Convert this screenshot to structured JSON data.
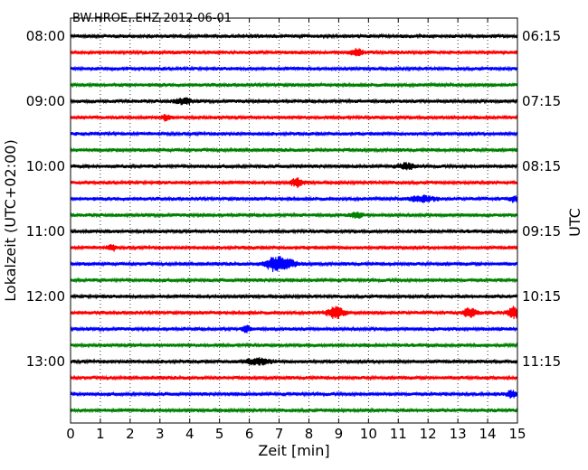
{
  "chart_data": {
    "type": "line",
    "title": "BW.HROE..EHZ 2012-06-01",
    "xlabel": "Zeit  [min]",
    "ylabel_left": "Lokalzeit (UTC+02:00)",
    "ylabel_right": "UTC",
    "xlim": [
      0,
      15
    ],
    "x_ticks": [
      "0",
      "1",
      "2",
      "3",
      "4",
      "5",
      "6",
      "7",
      "8",
      "9",
      "10",
      "11",
      "12",
      "13",
      "14",
      "15"
    ],
    "left_tick_labels": [
      "08:00",
      "09:00",
      "10:00",
      "11:00",
      "12:00",
      "13:00"
    ],
    "right_tick_labels": [
      "06:15",
      "07:15",
      "08:15",
      "09:15",
      "10:15",
      "11:15"
    ],
    "grid": "vertical dotted",
    "trace_colors": [
      "#000000",
      "#ff0000",
      "#0000ff",
      "#008000"
    ],
    "trace_count": 24,
    "trace_interval_min": 15
  }
}
